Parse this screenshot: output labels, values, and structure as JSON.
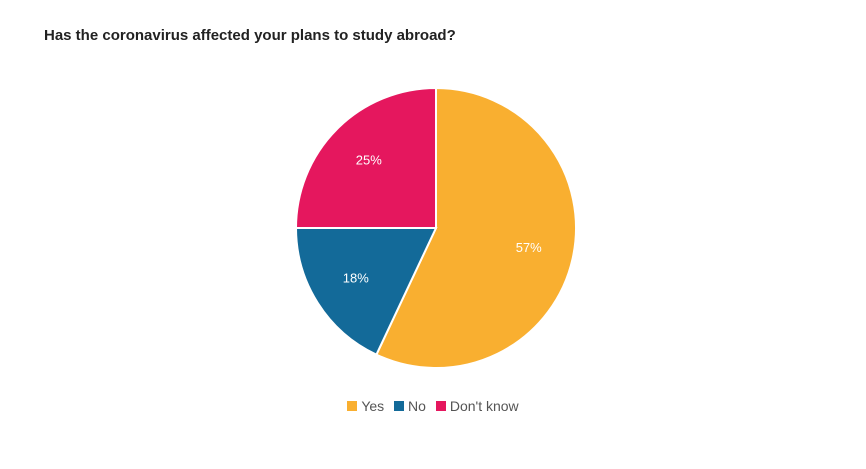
{
  "title": "Has the coronavirus affected your plans to study abroad?",
  "chart_data": {
    "type": "pie",
    "title": "Has the coronavirus affected your plans to study abroad?",
    "categories": [
      "Yes",
      "No",
      "Don't know"
    ],
    "values": [
      57,
      18,
      25
    ],
    "labels": [
      "57%",
      "18%",
      "25%"
    ],
    "colors": [
      "#F9AF30",
      "#136A99",
      "#E5175E"
    ],
    "legend_position": "bottom",
    "start_angle": "12 o'clock, clockwise"
  }
}
